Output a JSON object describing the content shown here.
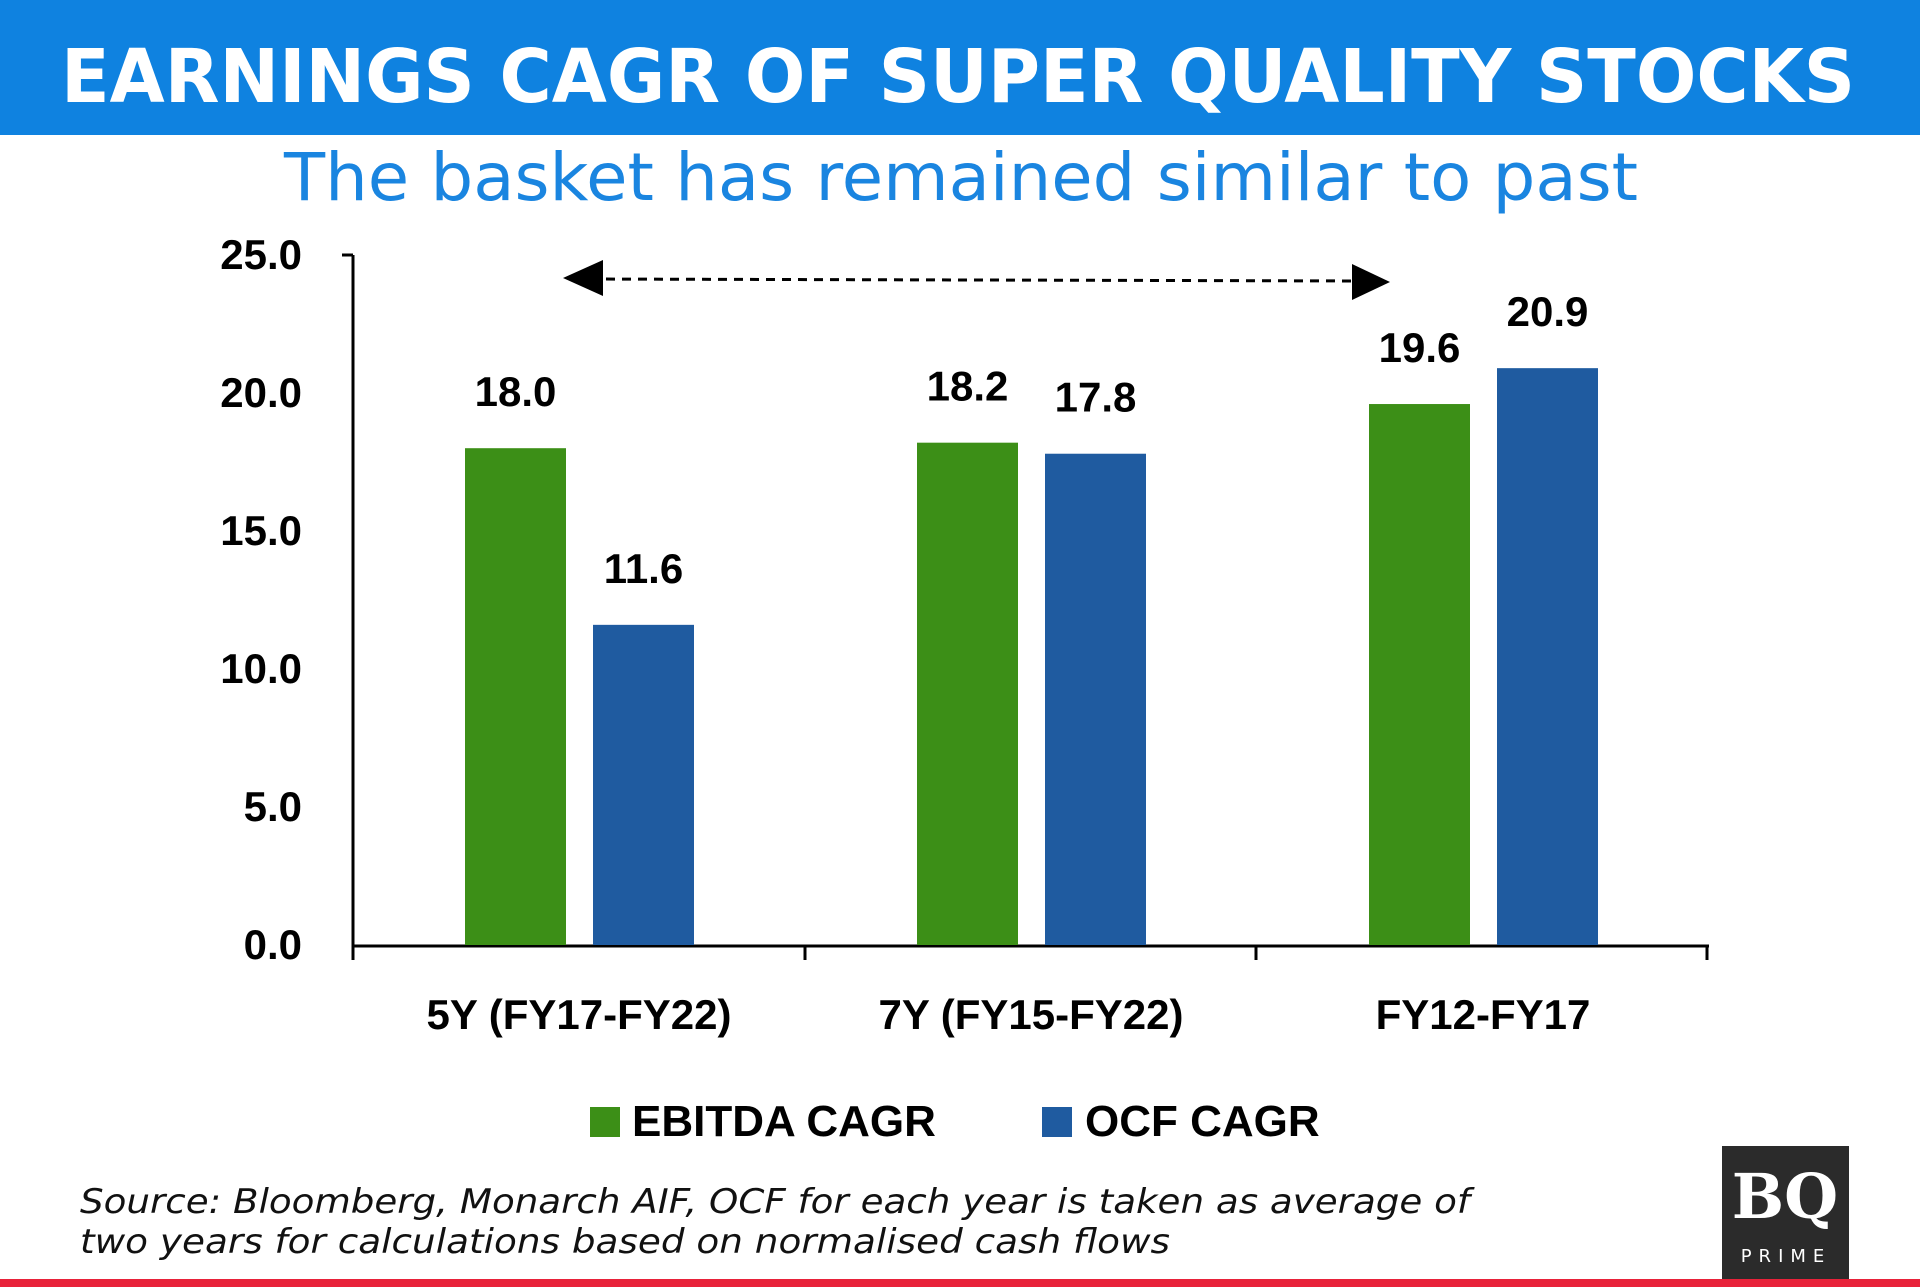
{
  "header": {
    "title": "EARNINGS CAGR OF SUPER QUALITY STOCKS",
    "subtitle": "The basket has remained similar to past"
  },
  "colors": {
    "header_bg": "#0f82e0",
    "subtitle": "#1a85e0",
    "ebitda": "#3c8f17",
    "ocf": "#1f5ba0",
    "bottom_bar": "#e8223a",
    "logo_bg": "#2b2b2b"
  },
  "chart_data": {
    "type": "bar",
    "categories": [
      "5Y (FY17-FY22)",
      "7Y (FY15-FY22)",
      "FY12-FY17"
    ],
    "series": [
      {
        "name": "EBITDA CAGR",
        "values": [
          18.0,
          18.2,
          19.6
        ]
      },
      {
        "name": "OCF CAGR",
        "values": [
          11.6,
          17.8,
          20.9
        ]
      }
    ],
    "value_labels": [
      [
        "18.0",
        "18.2",
        "19.6"
      ],
      [
        "11.6",
        "17.8",
        "20.9"
      ]
    ],
    "ylim": [
      0,
      25
    ],
    "yticks": [
      "0.0",
      "5.0",
      "10.0",
      "15.0",
      "20.0",
      "25.0"
    ],
    "legend_position": "bottom",
    "annotation": "double-headed dashed arrow spanning from 5Y group to FY12-FY17 group",
    "grid": false
  },
  "footer": {
    "source_line1": "Source: Bloomberg, Monarch AIF, OCF for each year is taken as average of",
    "source_line2": "two years for calculations based on normalised cash flows"
  },
  "logo": {
    "main": "BQ",
    "sub": "PRIME"
  }
}
